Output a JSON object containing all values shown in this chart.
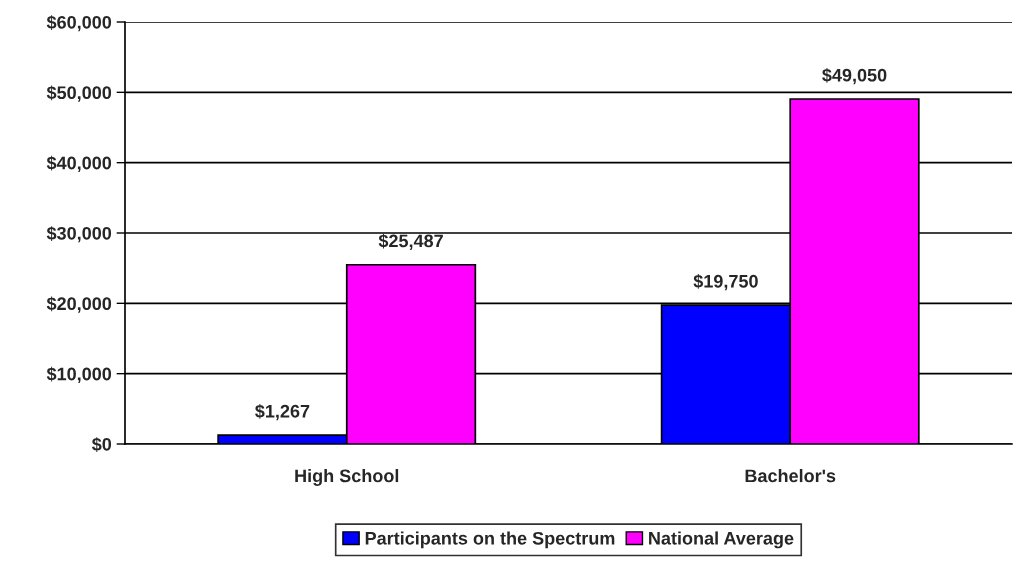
{
  "chart_data": {
    "type": "bar",
    "categories": [
      "High School",
      "Bachelor's"
    ],
    "series": [
      {
        "name": "Participants on the Spectrum",
        "color": "#0000ff",
        "values": [
          1267,
          19750
        ],
        "value_labels": [
          "$1,267",
          "$19,750"
        ]
      },
      {
        "name": "National Average",
        "color": "#ff00ff",
        "values": [
          25487,
          49050
        ],
        "value_labels": [
          "$25,487",
          "$49,050"
        ]
      }
    ],
    "ylim": [
      0,
      60000
    ],
    "yticks": [
      {
        "value": 0,
        "label": "$0"
      },
      {
        "value": 10000,
        "label": "$10,000"
      },
      {
        "value": 20000,
        "label": "$20,000"
      },
      {
        "value": 30000,
        "label": "$30,000"
      },
      {
        "value": 40000,
        "label": "$40,000"
      },
      {
        "value": 50000,
        "label": "$50,000"
      },
      {
        "value": 60000,
        "label": "$60,000"
      }
    ],
    "grid": "y",
    "legend": "bottom"
  }
}
